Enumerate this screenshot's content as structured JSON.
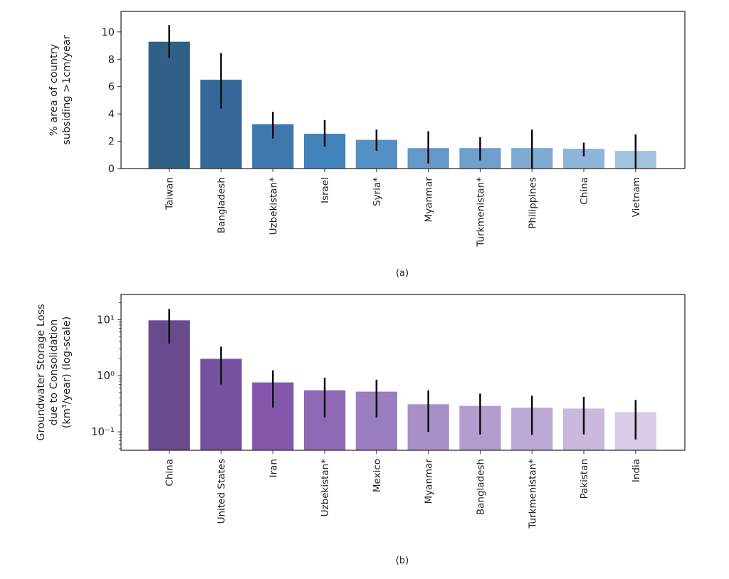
{
  "chart_data": [
    {
      "type": "bar",
      "caption": "(a)",
      "ylabel_lines": [
        "% area of country",
        "subsiding >1cm/year"
      ],
      "xlabel": "",
      "yscale": "linear",
      "ylim": [
        0,
        11.5
      ],
      "yticks": [
        0,
        2,
        4,
        6,
        8,
        10
      ],
      "ytick_labels": [
        "0",
        "2",
        "4",
        "6",
        "8",
        "10"
      ],
      "categories": [
        "Taiwan",
        "Bangladesh",
        "Uzbekistan*",
        "Israel",
        "Syria*",
        "Myanmar",
        "Turkmenistan*",
        "Philippines",
        "China",
        "Vietnam"
      ],
      "values": [
        9.28,
        6.5,
        3.25,
        2.55,
        2.1,
        1.5,
        1.5,
        1.5,
        1.45,
        1.3
      ],
      "err_low": [
        8.1,
        4.4,
        2.2,
        1.6,
        1.3,
        0.37,
        0.6,
        0.0,
        0.9,
        0.0
      ],
      "err_high": [
        10.5,
        8.45,
        4.15,
        3.55,
        2.85,
        2.73,
        2.3,
        2.85,
        1.9,
        2.5
      ],
      "colors": [
        "#305f88",
        "#36699a",
        "#3e78ad",
        "#4383bb",
        "#5590c4",
        "#6499c9",
        "#6f9fcc",
        "#7ea9d2",
        "#8fb4d9",
        "#a3c2e0"
      ],
      "grid": false
    },
    {
      "type": "bar",
      "caption": "(b)",
      "ylabel_lines": [
        "Groundwater Storage Loss",
        "due to Consolidation",
        "(km³/year) (log-scale)"
      ],
      "xlabel": "",
      "yscale": "log",
      "ylim": [
        0.047,
        28
      ],
      "yticks": [
        0.1,
        1,
        10
      ],
      "ytick_labels": [
        "10⁻¹",
        "10⁰",
        "10¹"
      ],
      "categories": [
        "China",
        "United States",
        "Iran",
        "Uzbekistan*",
        "Mexico",
        "Myanmar",
        "Bangladesh",
        "Turkmenistan*",
        "Pakistan",
        "India"
      ],
      "values": [
        9.7,
        2.0,
        0.76,
        0.55,
        0.52,
        0.31,
        0.29,
        0.27,
        0.26,
        0.225
      ],
      "err_low": [
        3.7,
        0.7,
        0.27,
        0.18,
        0.18,
        0.1,
        0.09,
        0.088,
        0.09,
        0.073
      ],
      "err_high": [
        15.5,
        3.3,
        1.25,
        0.92,
        0.85,
        0.55,
        0.48,
        0.44,
        0.42,
        0.37
      ],
      "colors": [
        "#694a8e",
        "#75529f",
        "#8457ad",
        "#8f69b6",
        "#9a7ebf",
        "#a88fc8",
        "#b29dcf",
        "#bcaad6",
        "#c8b9dd",
        "#d8cce6"
      ],
      "grid": false
    }
  ]
}
